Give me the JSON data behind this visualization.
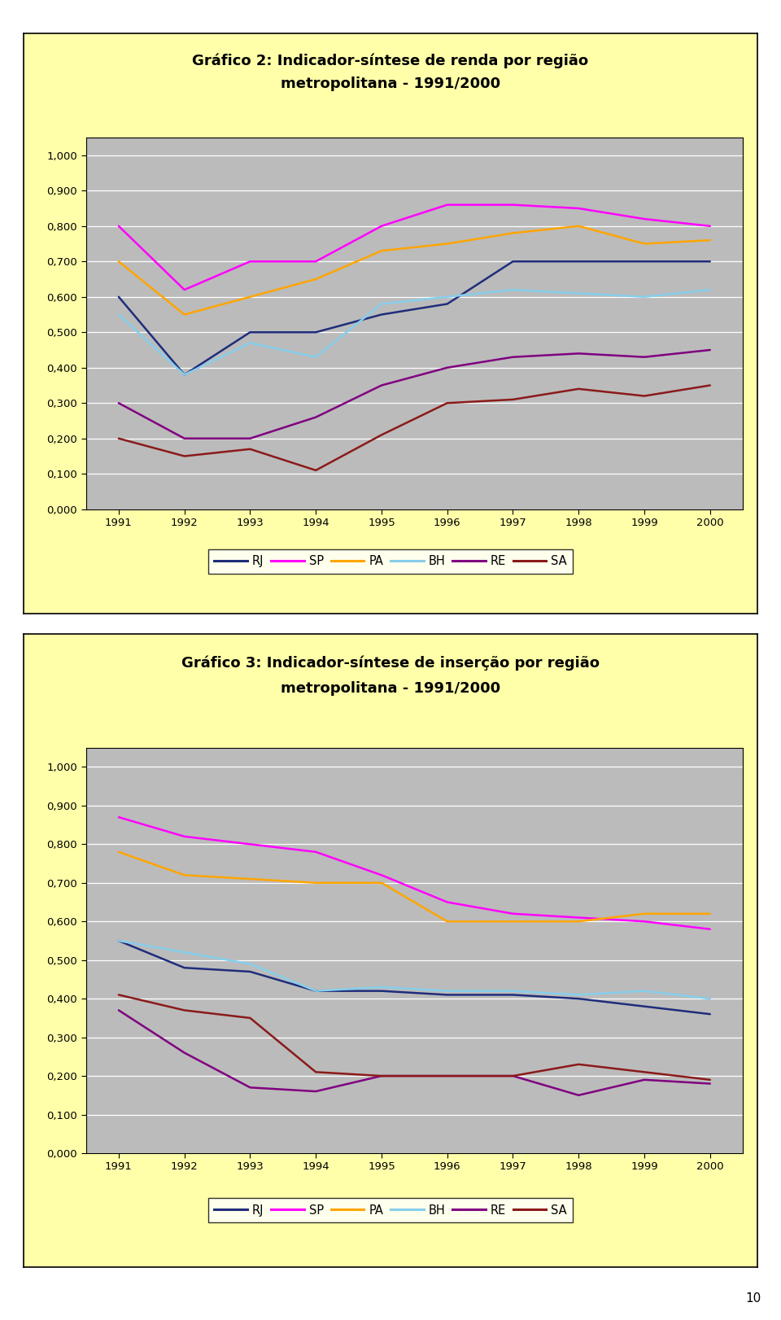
{
  "chart1": {
    "title_line1": "Gráfico 2: Indicador-síntese de renda por região",
    "title_line2": "metropolitana - 1991/2000",
    "years": [
      1991,
      1992,
      1993,
      1994,
      1995,
      1996,
      1997,
      1998,
      1999,
      2000
    ],
    "series": {
      "RJ": [
        0.6,
        0.38,
        0.5,
        0.5,
        0.55,
        0.58,
        0.7,
        0.7,
        0.7,
        0.7
      ],
      "SP": [
        0.8,
        0.62,
        0.7,
        0.7,
        0.8,
        0.86,
        0.86,
        0.85,
        0.82,
        0.8
      ],
      "PA": [
        0.7,
        0.55,
        0.6,
        0.65,
        0.73,
        0.75,
        0.78,
        0.8,
        0.75,
        0.76
      ],
      "BH": [
        0.55,
        0.38,
        0.47,
        0.43,
        0.58,
        0.6,
        0.62,
        0.61,
        0.6,
        0.62
      ],
      "RE": [
        0.3,
        0.2,
        0.2,
        0.26,
        0.35,
        0.4,
        0.43,
        0.44,
        0.43,
        0.45
      ],
      "SA": [
        0.2,
        0.15,
        0.17,
        0.11,
        0.21,
        0.3,
        0.31,
        0.34,
        0.32,
        0.35
      ]
    }
  },
  "chart2": {
    "title_line1": "Gráfico 3: Indicador-síntese de inserção por região",
    "title_line2": "metropolitana - 1991/2000",
    "years": [
      1991,
      1992,
      1993,
      1994,
      1995,
      1996,
      1997,
      1998,
      1999,
      2000
    ],
    "series": {
      "RJ": [
        0.55,
        0.48,
        0.47,
        0.42,
        0.42,
        0.41,
        0.41,
        0.4,
        0.38,
        0.36
      ],
      "SP": [
        0.87,
        0.82,
        0.8,
        0.78,
        0.72,
        0.65,
        0.62,
        0.61,
        0.6,
        0.58
      ],
      "PA": [
        0.78,
        0.72,
        0.71,
        0.7,
        0.7,
        0.6,
        0.6,
        0.6,
        0.62,
        0.62
      ],
      "BH": [
        0.55,
        0.52,
        0.49,
        0.42,
        0.43,
        0.42,
        0.42,
        0.41,
        0.42,
        0.4
      ],
      "RE": [
        0.37,
        0.26,
        0.17,
        0.16,
        0.2,
        0.2,
        0.2,
        0.15,
        0.19,
        0.18
      ],
      "SA": [
        0.41,
        0.37,
        0.35,
        0.21,
        0.2,
        0.2,
        0.2,
        0.23,
        0.21,
        0.19
      ]
    }
  },
  "colors": {
    "RJ": "#1F2D7B",
    "SP": "#FF00FF",
    "PA": "#FFA500",
    "BH": "#87CEEB",
    "RE": "#800080",
    "SA": "#8B1A1A"
  },
  "yticks": [
    0.0,
    0.1,
    0.2,
    0.3,
    0.4,
    0.5,
    0.6,
    0.7,
    0.8,
    0.9,
    1.0
  ],
  "ylim": [
    0.0,
    1.05
  ],
  "bg_outer": "#FFFFAA",
  "bg_plot": "#BBBBBB",
  "page_number": "10",
  "line_width": 1.8
}
